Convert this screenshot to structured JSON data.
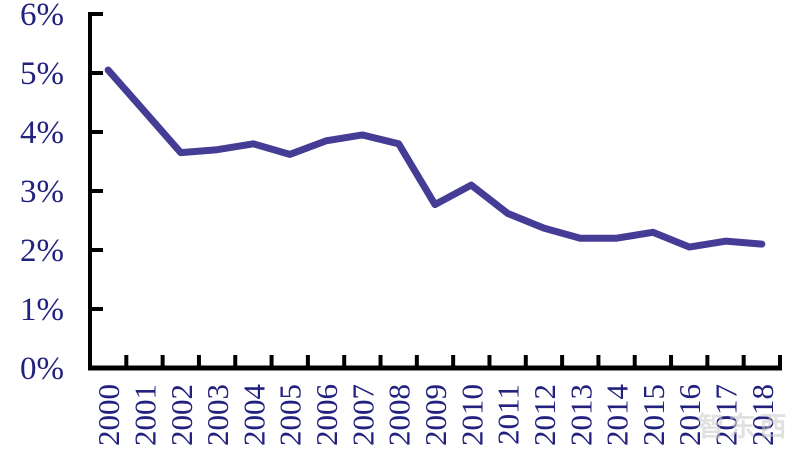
{
  "chart": {
    "title": "",
    "watermark": "智东西",
    "watermark_sub": "zhidx"
  },
  "colors": {
    "line": "#453c96",
    "axis": "#000000",
    "tick_label": "#22227e",
    "background": "#ffffff",
    "watermark": "#c9c9c9"
  },
  "chart_data": {
    "type": "line",
    "title": "",
    "xlabel": "",
    "ylabel": "",
    "categories": [
      "2000",
      "2001",
      "2002",
      "2003",
      "2004",
      "2005",
      "2006",
      "2007",
      "2008",
      "2009",
      "2010",
      "2011",
      "2012",
      "2013",
      "2014",
      "2015",
      "2016",
      "2017",
      "2018"
    ],
    "values": [
      5.05,
      4.35,
      3.65,
      3.7,
      3.8,
      3.62,
      3.85,
      3.95,
      3.8,
      2.77,
      3.1,
      2.62,
      2.37,
      2.2,
      2.2,
      2.3,
      2.05,
      2.15,
      2.1
    ],
    "ylim": [
      0,
      6
    ],
    "ytick_step": 1,
    "ytick_labels": [
      "0%",
      "1%",
      "2%",
      "3%",
      "4%",
      "5%",
      "6%"
    ],
    "xtick_label_rotation": -90,
    "grid": false,
    "legend": "none",
    "tick_direction": "inside"
  }
}
